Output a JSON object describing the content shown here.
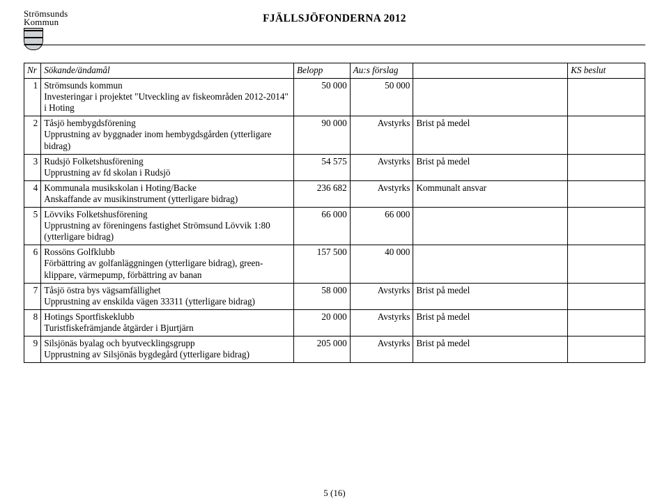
{
  "header": {
    "org_line1": "Strömsunds",
    "org_line2": "Kommun",
    "title": "FJÄLLSJÖFONDERNA 2012"
  },
  "columns": {
    "nr": "Nr",
    "applicant": "Sökande/ändamål",
    "amount": "Belopp",
    "proposal": "Au:s förslag",
    "note": "",
    "decision": "KS beslut"
  },
  "rows": [
    {
      "nr": "1",
      "applicant": "Strömsunds kommun\nInvesteringar i projektet \"Utveckling av fiskeområden 2012-2014\" i Hoting",
      "amount": "50 000",
      "proposal": "50 000",
      "note": "",
      "decision": ""
    },
    {
      "nr": "2",
      "applicant": "Tåsjö hembygdsförening\nUpprustning av byggnader inom hembygdsgården (ytterligare bidrag)",
      "amount": "90 000",
      "proposal": "Avstyrks",
      "note": "Brist på medel",
      "decision": ""
    },
    {
      "nr": "3",
      "applicant": "Rudsjö Folketshusförening\nUpprustning av fd skolan i Rudsjö",
      "amount": "54 575",
      "proposal": "Avstyrks",
      "note": "Brist på medel",
      "decision": ""
    },
    {
      "nr": "4",
      "applicant": "Kommunala musikskolan i Hoting/Backe\nAnskaffande av musikinstrument (ytterligare bidrag)",
      "amount": "236 682",
      "proposal": "Avstyrks",
      "note": "Kommunalt ansvar",
      "decision": ""
    },
    {
      "nr": "5",
      "applicant": "Lövviks Folketshusförening\nUpprustning av föreningens fastighet Strömsund Lövvik 1:80 (ytterligare bidrag)",
      "amount": "66 000",
      "proposal": "66 000",
      "note": "",
      "decision": ""
    },
    {
      "nr": "6",
      "applicant": "Rossöns Golfklubb\nFörbättring av golfanläggningen (ytterligare bidrag), green-klippare, värmepump, förbättring av banan",
      "amount": "157 500",
      "proposal": "40 000",
      "note": "",
      "decision": ""
    },
    {
      "nr": "7",
      "applicant": "Tåsjö östra bys vägsamfällighet\nUpprustning av enskilda vägen 33311 (ytterligare bidrag)",
      "amount": "58 000",
      "proposal": "Avstyrks",
      "note": "Brist på medel",
      "decision": ""
    },
    {
      "nr": "8",
      "applicant": "Hotings Sportfiskeklubb\nTuristfiskefrämjande åtgärder i Bjurtjärn",
      "amount": "20 000",
      "proposal": "Avstyrks",
      "note": "Brist på medel",
      "decision": ""
    },
    {
      "nr": "9",
      "applicant": "Silsjönäs byalag och byutvecklingsgrupp\nUpprustning av Silsjönäs bygdegård (ytterligare bidrag)",
      "amount": "205 000",
      "proposal": "Avstyrks",
      "note": "Brist på medel",
      "decision": ""
    }
  ],
  "footer": "5 (16)"
}
